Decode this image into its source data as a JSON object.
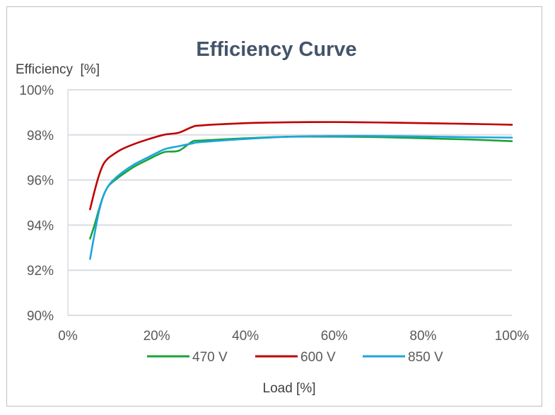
{
  "chart_data": {
    "type": "line",
    "title": "Efficiency Curve",
    "xlabel": "Load [%]",
    "ylabel": "Efficiency  [%]",
    "xlim": [
      0,
      100
    ],
    "ylim": [
      90,
      100
    ],
    "x_ticks": [
      "0%",
      "20%",
      "40%",
      "60%",
      "80%",
      "100%"
    ],
    "y_ticks": [
      "90%",
      "92%",
      "94%",
      "96%",
      "98%",
      "100%"
    ],
    "grid": "horizontal",
    "legend": "bottom",
    "series": [
      {
        "name": "470 V",
        "color": "#1aa33a",
        "x": [
          5,
          6,
          7,
          8,
          9,
          10,
          12,
          15,
          18,
          20,
          22,
          25,
          28,
          30,
          40,
          50,
          60,
          70,
          80,
          90,
          100
        ],
        "y": [
          93.4,
          94.0,
          94.7,
          95.3,
          95.7,
          95.9,
          96.2,
          96.6,
          96.9,
          97.1,
          97.25,
          97.3,
          97.7,
          97.75,
          97.85,
          97.92,
          97.92,
          97.9,
          97.85,
          97.8,
          97.72
        ]
      },
      {
        "name": "600 V",
        "color": "#c00000",
        "x": [
          5,
          6,
          7,
          8,
          9,
          10,
          12,
          15,
          18,
          20,
          22,
          25,
          28,
          30,
          40,
          50,
          60,
          70,
          80,
          90,
          100
        ],
        "y": [
          94.7,
          95.5,
          96.2,
          96.7,
          96.95,
          97.1,
          97.35,
          97.6,
          97.8,
          97.92,
          98.02,
          98.1,
          98.35,
          98.42,
          98.52,
          98.56,
          98.57,
          98.55,
          98.52,
          98.49,
          98.45
        ]
      },
      {
        "name": "850 V",
        "color": "#1ea5dd",
        "x": [
          5,
          6,
          7,
          8,
          9,
          10,
          12,
          15,
          18,
          20,
          22,
          25,
          28,
          30,
          40,
          50,
          60,
          70,
          80,
          90,
          100
        ],
        "y": [
          92.5,
          93.6,
          94.6,
          95.3,
          95.7,
          95.95,
          96.3,
          96.7,
          97.0,
          97.2,
          97.38,
          97.5,
          97.62,
          97.68,
          97.82,
          97.92,
          97.95,
          97.95,
          97.93,
          97.9,
          97.88
        ]
      }
    ]
  }
}
